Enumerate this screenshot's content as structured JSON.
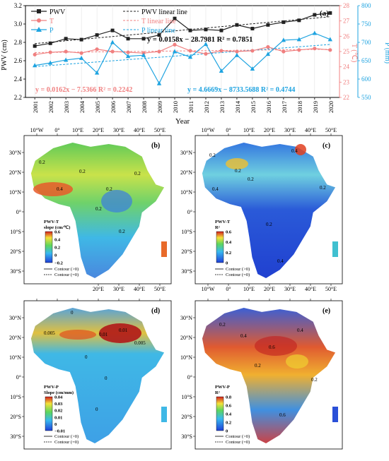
{
  "colors": {
    "pwv": "#222222",
    "t": "#f08080",
    "p": "#1ea3e0",
    "frame": "#000000"
  },
  "chart_data": [
    {
      "type": "line",
      "panel_label": "(a)",
      "xlabel": "Year",
      "x": [
        2001,
        2002,
        2003,
        2004,
        2005,
        2006,
        2007,
        2008,
        2009,
        2010,
        2011,
        2012,
        2013,
        2014,
        2015,
        2016,
        2017,
        2018,
        2019,
        2020
      ],
      "x_tick_labels": [
        "2001",
        "2002",
        "2003",
        "2004",
        "2005",
        "2006",
        "2007",
        "2008",
        "2009",
        "2010",
        "2011",
        "2012",
        "2013",
        "2014",
        "2015",
        "2016",
        "2017",
        "2018",
        "2019",
        "2020"
      ],
      "y_left": {
        "label": "PWV (cm)",
        "ylim": [
          2.2,
          3.2
        ],
        "ticks": [
          "2.2",
          "2.4",
          "2.6",
          "2.8",
          "3.0",
          "3.2"
        ]
      },
      "y_right_t": {
        "label": "T (℃)",
        "ylim": [
          22,
          28
        ],
        "ticks": [
          "22",
          "23",
          "24",
          "25",
          "26",
          "27",
          "28"
        ]
      },
      "y_right_p": {
        "label": "P (mm)",
        "ylim": [
          550,
          800
        ],
        "ticks": [
          "550",
          "600",
          "650",
          "700",
          "750",
          "800"
        ]
      },
      "legend": {
        "placement": "top-left",
        "entries": [
          "PWV",
          "PWV linear line",
          "T",
          "T linear line",
          "P",
          "P linear line"
        ]
      },
      "series": [
        {
          "name": "PWV",
          "axis": "left",
          "marker": "square",
          "values": [
            2.76,
            2.79,
            2.84,
            2.83,
            2.88,
            2.93,
            2.84,
            2.84,
            2.88,
            3.06,
            2.93,
            2.94,
            2.93,
            2.99,
            2.95,
            2.99,
            3.02,
            3.04,
            3.1,
            3.12
          ]
        },
        {
          "name": "T",
          "axis": "right_t",
          "marker": "circle",
          "values": [
            24.8,
            24.95,
            25.0,
            24.9,
            25.15,
            25.0,
            24.95,
            24.9,
            25.0,
            25.45,
            25.05,
            24.85,
            25.05,
            25.0,
            25.05,
            25.3,
            25.0,
            25.1,
            25.2,
            25.1
          ]
        },
        {
          "name": "P",
          "axis": "right_p",
          "marker": "triangle",
          "values": [
            637,
            644,
            652,
            657,
            617,
            700,
            662,
            665,
            588,
            675,
            660,
            695,
            622,
            665,
            628,
            668,
            706,
            708,
            725,
            708
          ]
        }
      ],
      "annotations": [
        "y = 0.0158x − 28.7981  R² = 0.7851",
        "y = 0.0162x − 7.5366  R² = 0.2242",
        "y = 4.6669x − 8733.5688  R² = 0.4744"
      ]
    },
    {
      "type": "heatmap",
      "panel_label": "(b)",
      "legend_title": [
        "PWV-T",
        "slope (cm/℃)"
      ],
      "colorbar_ticks": [
        "0.6",
        "0.4",
        "0.2",
        "0",
        "−0.2"
      ],
      "contour_legend": [
        "Contour (>0)",
        "Contour (=0)"
      ],
      "contour_labels": [
        "0.2",
        "0.2",
        "0.2",
        "0.4",
        "0.2",
        "0.2",
        "0.2"
      ]
    },
    {
      "type": "heatmap",
      "panel_label": "(c)",
      "legend_title": [
        "PWV-T",
        "R²"
      ],
      "colorbar_ticks": [
        "0.6",
        "0.4",
        "0.2",
        "0"
      ],
      "contour_legend": [
        "Contour (>0)",
        "Contour (=0)"
      ],
      "contour_labels": [
        "0.2",
        "0.2",
        "0.4",
        "0.4",
        "0.2",
        "0.2",
        "0.2",
        "0.4"
      ]
    },
    {
      "type": "heatmap",
      "panel_label": "(d)",
      "legend_title": [
        "PWV-P",
        "Slope (cm/mm)"
      ],
      "colorbar_ticks": [
        "0.04",
        "0.03",
        "0.02",
        "0.01",
        "0",
        "−0.01"
      ],
      "contour_legend": [
        "Contour (>0)",
        "Contour (=0)"
      ],
      "contour_labels": [
        "0.005",
        "0.01",
        "0.005",
        "0",
        "0.01",
        "0",
        "0",
        "0"
      ]
    },
    {
      "type": "heatmap",
      "panel_label": "(e)",
      "legend_title": [
        "PWV-P",
        "R²"
      ],
      "colorbar_ticks": [
        "0.8",
        "0.6",
        "0.4",
        "0.2",
        "0"
      ],
      "contour_legend": [
        "Contour (>0)",
        "Contour (=0)"
      ],
      "contour_labels": [
        "0.2",
        "0.4",
        "0.6",
        "0.4",
        "0.2",
        "0.6",
        "0.2"
      ]
    }
  ],
  "map_axes": {
    "lon_ticks": [
      "10°W",
      "0°",
      "10°E",
      "20°E",
      "30°E",
      "40°E",
      "50°E"
    ],
    "lat_ticks": [
      "30°N",
      "20°N",
      "10°N",
      "0°",
      "10°S",
      "20°S",
      "30°S"
    ]
  }
}
